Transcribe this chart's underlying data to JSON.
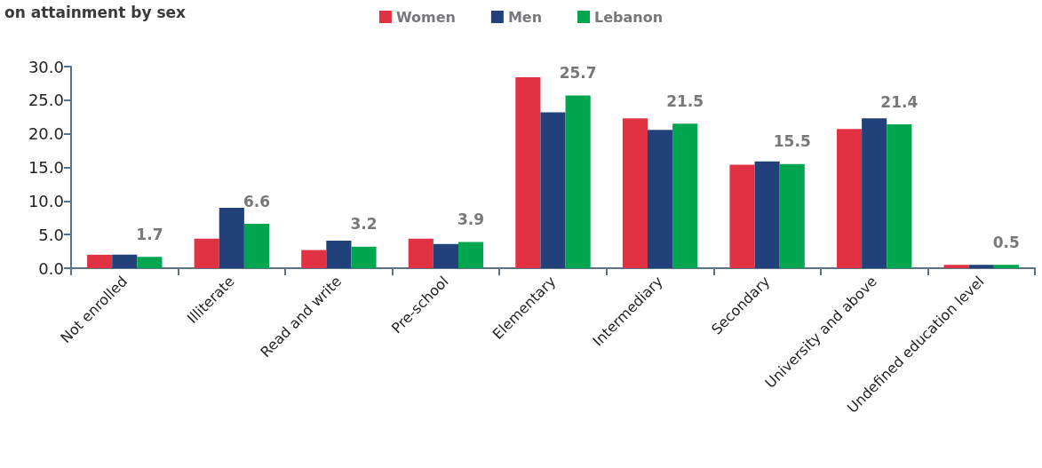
{
  "chart_data": {
    "type": "bar",
    "title": "on attainment by sex",
    "categories": [
      "Not enrolled",
      "Illiterate",
      "Read and write",
      "Pre-school",
      "Elementary",
      "Intermediary",
      "Secondary",
      "University and above",
      "Undefined education level"
    ],
    "series": [
      {
        "name": "Women",
        "color": "#e03243",
        "values": [
          2.0,
          4.4,
          2.7,
          4.4,
          28.4,
          22.3,
          15.4,
          20.7,
          0.5
        ]
      },
      {
        "name": "Men",
        "color": "#22417a",
        "values": [
          2.0,
          9.0,
          4.1,
          3.6,
          23.2,
          20.6,
          15.9,
          22.3,
          0.5
        ]
      },
      {
        "name": "Lebanon",
        "color": "#00a550",
        "values": [
          1.7,
          6.6,
          3.2,
          3.9,
          25.7,
          21.5,
          15.5,
          21.4,
          0.5
        ],
        "value_labels": [
          "1.7",
          "6.6",
          "3.2",
          "3.9",
          "25.7",
          "21.5",
          "15.5",
          "21.4",
          "0.5"
        ]
      }
    ],
    "ylim": [
      0,
      30
    ],
    "yticks": [
      {
        "value": 0,
        "label": "0.0"
      },
      {
        "value": 5,
        "label": "5.0"
      },
      {
        "value": 10,
        "label": "10.0"
      },
      {
        "value": 15,
        "label": "15.0"
      },
      {
        "value": 20,
        "label": "20.0"
      },
      {
        "value": 25,
        "label": "25.0"
      },
      {
        "value": 30,
        "label": "30.0"
      }
    ],
    "grid": false,
    "legend": "top"
  }
}
